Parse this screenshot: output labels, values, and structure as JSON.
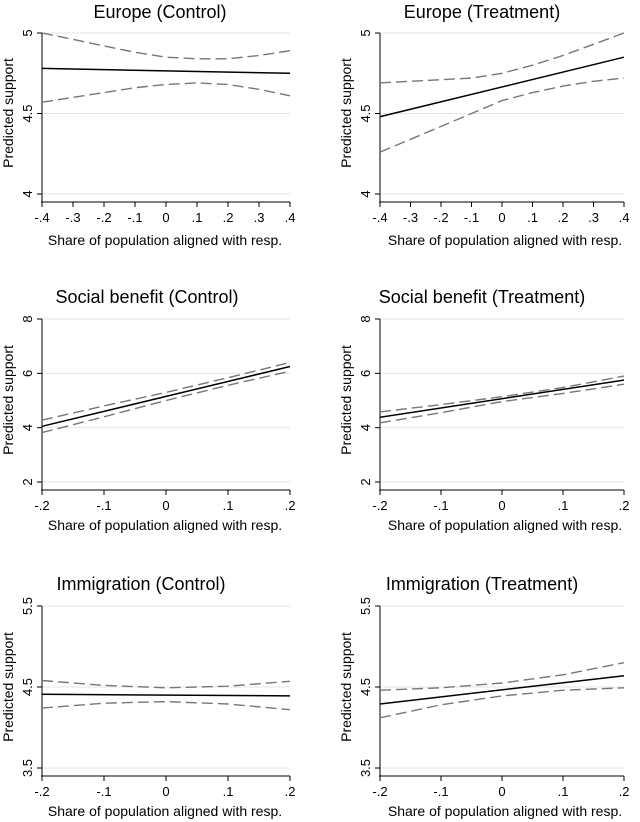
{
  "chart_data": [
    {
      "type": "line",
      "title": "Europe (Control)",
      "xlabel": "Share of population aligned with resp.",
      "ylabel": "Predicted support",
      "xlim": [
        -0.4,
        0.4
      ],
      "ylim": [
        4,
        5
      ],
      "xticks": [
        -0.4,
        -0.3,
        -0.2,
        -0.1,
        0,
        0.1,
        0.2,
        0.3,
        0.4
      ],
      "xtick_labels": [
        "-.4",
        "-.3",
        "-.2",
        "-.1",
        "0",
        ".1",
        ".2",
        ".3",
        ".4"
      ],
      "yticks": [
        4,
        4.5,
        5
      ],
      "ytick_labels": [
        "4",
        "4.5",
        "5"
      ],
      "grid": "horizontal",
      "series": [
        {
          "role": "estimate",
          "x": [
            -0.4,
            0.4
          ],
          "y": [
            4.78,
            4.75
          ],
          "color": "#000000",
          "dash": "solid"
        },
        {
          "role": "upper-ci",
          "x": [
            -0.4,
            -0.3,
            -0.2,
            -0.1,
            0,
            0.1,
            0.2,
            0.3,
            0.4
          ],
          "y": [
            5.0,
            4.96,
            4.92,
            4.88,
            4.85,
            4.84,
            4.84,
            4.86,
            4.89
          ],
          "color": "#777777",
          "dash": "dashed"
        },
        {
          "role": "lower-ci",
          "x": [
            -0.4,
            -0.3,
            -0.2,
            -0.1,
            0,
            0.1,
            0.2,
            0.3,
            0.4
          ],
          "y": [
            4.57,
            4.6,
            4.63,
            4.66,
            4.68,
            4.69,
            4.68,
            4.65,
            4.61
          ],
          "color": "#777777",
          "dash": "dashed"
        }
      ]
    },
    {
      "type": "line",
      "title": "Europe (Treatment)",
      "xlabel": "Share of population aligned with resp.",
      "ylabel": "Predicted support",
      "xlim": [
        -0.4,
        0.4
      ],
      "ylim": [
        4,
        5
      ],
      "xticks": [
        -0.4,
        -0.3,
        -0.2,
        -0.1,
        0,
        0.1,
        0.2,
        0.3,
        0.4
      ],
      "xtick_labels": [
        "-.4",
        "-.3",
        "-.2",
        "-.1",
        "0",
        ".1",
        ".2",
        ".3",
        ".4"
      ],
      "yticks": [
        4,
        4.5,
        5
      ],
      "ytick_labels": [
        "4",
        "4.5",
        "5"
      ],
      "grid": "horizontal",
      "series": [
        {
          "role": "estimate",
          "x": [
            -0.4,
            0.4
          ],
          "y": [
            4.48,
            4.85
          ],
          "color": "#000000",
          "dash": "solid"
        },
        {
          "role": "upper-ci",
          "x": [
            -0.4,
            -0.3,
            -0.2,
            -0.1,
            0,
            0.1,
            0.2,
            0.3,
            0.4
          ],
          "y": [
            4.69,
            4.7,
            4.71,
            4.72,
            4.75,
            4.8,
            4.86,
            4.93,
            5.0
          ],
          "color": "#777777",
          "dash": "dashed"
        },
        {
          "role": "lower-ci",
          "x": [
            -0.4,
            -0.3,
            -0.2,
            -0.1,
            0,
            0.1,
            0.2,
            0.3,
            0.4
          ],
          "y": [
            4.26,
            4.34,
            4.42,
            4.5,
            4.58,
            4.63,
            4.67,
            4.7,
            4.72
          ],
          "color": "#777777",
          "dash": "dashed"
        }
      ]
    },
    {
      "type": "line",
      "title": "Social benefit (Control)",
      "xlabel": "Share of population aligned with resp.",
      "ylabel": "Predicted support",
      "xlim": [
        -0.2,
        0.2
      ],
      "ylim": [
        2,
        8
      ],
      "xticks": [
        -0.2,
        -0.1,
        0,
        0.1,
        0.2
      ],
      "xtick_labels": [
        "-.2",
        "-.1",
        "0",
        ".1",
        ".2"
      ],
      "yticks": [
        2,
        4,
        6,
        8
      ],
      "ytick_labels": [
        "2",
        "4",
        "6",
        "8"
      ],
      "grid": "horizontal",
      "series": [
        {
          "role": "estimate",
          "x": [
            -0.2,
            0.2
          ],
          "y": [
            4.05,
            6.25
          ],
          "color": "#000000",
          "dash": "solid"
        },
        {
          "role": "upper-ci",
          "x": [
            -0.2,
            -0.1,
            0,
            0.1,
            0.2
          ],
          "y": [
            4.28,
            4.8,
            5.3,
            5.84,
            6.4
          ],
          "color": "#777777",
          "dash": "dashed"
        },
        {
          "role": "lower-ci",
          "x": [
            -0.2,
            -0.1,
            0,
            0.1,
            0.2
          ],
          "y": [
            3.82,
            4.4,
            5.0,
            5.56,
            6.08
          ],
          "color": "#777777",
          "dash": "dashed"
        }
      ]
    },
    {
      "type": "line",
      "title": "Social benefit (Treatment)",
      "xlabel": "Share of population aligned with resp.",
      "ylabel": "Predicted support",
      "xlim": [
        -0.2,
        0.2
      ],
      "ylim": [
        2,
        8
      ],
      "xticks": [
        -0.2,
        -0.1,
        0,
        0.1,
        0.2
      ],
      "xtick_labels": [
        "-.2",
        "-.1",
        "0",
        ".1",
        ".2"
      ],
      "yticks": [
        2,
        4,
        6,
        8
      ],
      "ytick_labels": [
        "2",
        "4",
        "6",
        "8"
      ],
      "grid": "horizontal",
      "series": [
        {
          "role": "estimate",
          "x": [
            -0.2,
            0.2
          ],
          "y": [
            4.38,
            5.75
          ],
          "color": "#000000",
          "dash": "solid"
        },
        {
          "role": "upper-ci",
          "x": [
            -0.2,
            -0.1,
            0,
            0.1,
            0.2
          ],
          "y": [
            4.58,
            4.85,
            5.14,
            5.48,
            5.9
          ],
          "color": "#777777",
          "dash": "dashed"
        },
        {
          "role": "lower-ci",
          "x": [
            -0.2,
            -0.1,
            0,
            0.1,
            0.2
          ],
          "y": [
            4.18,
            4.55,
            4.96,
            5.26,
            5.6
          ],
          "color": "#777777",
          "dash": "dashed"
        }
      ]
    },
    {
      "type": "line",
      "title": "Immigration (Control)",
      "xlabel": "Share of population aligned with resp.",
      "ylabel": "Predicted support",
      "xlim": [
        -0.2,
        0.2
      ],
      "ylim": [
        3.5,
        5.5
      ],
      "xticks": [
        -0.2,
        -0.1,
        0,
        0.1,
        0.2
      ],
      "xtick_labels": [
        "-.2",
        "-.1",
        "0",
        ".1",
        ".2"
      ],
      "yticks": [
        3.5,
        4.5,
        5.5
      ],
      "ytick_labels": [
        "3.5",
        "4.5",
        "5.5"
      ],
      "grid": "horizontal",
      "series": [
        {
          "role": "estimate",
          "x": [
            -0.2,
            0.2
          ],
          "y": [
            4.41,
            4.39
          ],
          "color": "#000000",
          "dash": "solid"
        },
        {
          "role": "upper-ci",
          "x": [
            -0.2,
            -0.1,
            0,
            0.1,
            0.2
          ],
          "y": [
            4.58,
            4.52,
            4.49,
            4.51,
            4.57
          ],
          "color": "#777777",
          "dash": "dashed"
        },
        {
          "role": "lower-ci",
          "x": [
            -0.2,
            -0.1,
            0,
            0.1,
            0.2
          ],
          "y": [
            4.24,
            4.3,
            4.32,
            4.29,
            4.22
          ],
          "color": "#777777",
          "dash": "dashed"
        }
      ]
    },
    {
      "type": "line",
      "title": "Immigration (Treatment)",
      "xlabel": "Share of population aligned with resp.",
      "ylabel": "Predicted support",
      "xlim": [
        -0.2,
        0.2
      ],
      "ylim": [
        3.5,
        5.5
      ],
      "xticks": [
        -0.2,
        -0.1,
        0,
        0.1,
        0.2
      ],
      "xtick_labels": [
        "-.2",
        "-.1",
        "0",
        ".1",
        ".2"
      ],
      "yticks": [
        3.5,
        4.5,
        5.5
      ],
      "ytick_labels": [
        "3.5",
        "4.5",
        "5.5"
      ],
      "grid": "horizontal",
      "series": [
        {
          "role": "estimate",
          "x": [
            -0.2,
            0.2
          ],
          "y": [
            4.29,
            4.64
          ],
          "color": "#000000",
          "dash": "solid"
        },
        {
          "role": "upper-ci",
          "x": [
            -0.2,
            -0.1,
            0,
            0.1,
            0.2
          ],
          "y": [
            4.46,
            4.49,
            4.55,
            4.65,
            4.8
          ],
          "color": "#777777",
          "dash": "dashed"
        },
        {
          "role": "lower-ci",
          "x": [
            -0.2,
            -0.1,
            0,
            0.1,
            0.2
          ],
          "y": [
            4.12,
            4.28,
            4.39,
            4.46,
            4.49
          ],
          "color": "#777777",
          "dash": "dashed"
        }
      ]
    }
  ]
}
